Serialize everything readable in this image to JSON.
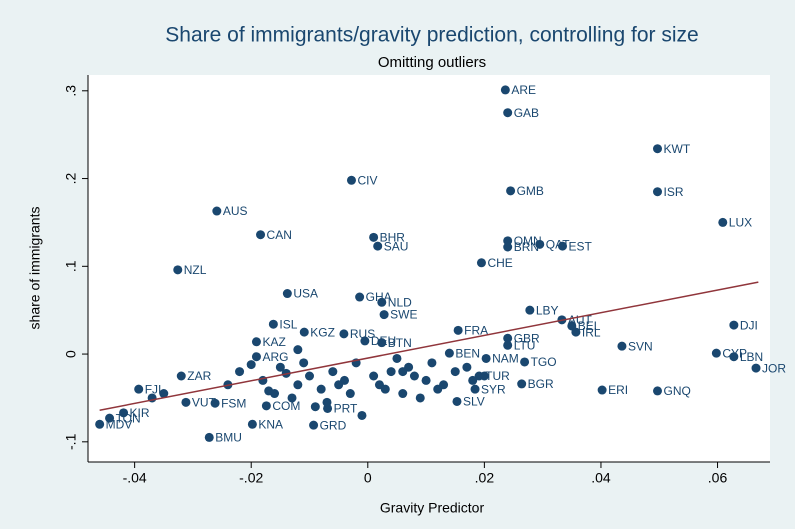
{
  "chart_data": {
    "type": "scatter",
    "title": "Share of immigrants/gravity prediction, controlling for size",
    "subtitle": "Omitting outliers",
    "x_label": "Gravity Predictor",
    "y_label": "share of immigrants",
    "color": "#1a476f",
    "xlim": [
      -0.048,
      0.069
    ],
    "ylim": [
      -0.123,
      0.318
    ],
    "xticks": [
      {
        "value": -0.04,
        "label": "-.04"
      },
      {
        "value": -0.02,
        "label": "-.02"
      },
      0,
      {
        "value": 0.02,
        "label": ".02"
      },
      {
        "value": 0.04,
        "label": ".04"
      },
      {
        "value": 0.06,
        "label": ".06"
      }
    ],
    "yticks": [
      {
        "value": -0.1,
        "label": "-.1"
      },
      0,
      {
        "value": 0.1,
        "label": ".1"
      },
      {
        "value": 0.2,
        "label": ".2"
      },
      {
        "value": 0.3,
        "label": ".3"
      }
    ],
    "fit": {
      "color": "#90353b",
      "x": [
        -0.046,
        0.067
      ],
      "y": [
        -0.064,
        0.082
      ]
    },
    "x": [
      0.0236,
      0.024,
      0.0497,
      0.0497,
      0.0609,
      -0.0028,
      0.0245,
      -0.0259,
      -0.0184,
      0.001,
      0.0017,
      0.024,
      0.024,
      0.0295,
      0.0334,
      0.0195,
      -0.0326,
      -0.0138,
      -0.0014,
      0.0024,
      0.0028,
      0.0278,
      0.0333,
      0.035,
      0.0357,
      -0.0162,
      0.0155,
      0.0436,
      0.0628,
      0.0598,
      0.0628,
      0.0666,
      0.024,
      0.024,
      0.014,
      0.0203,
      0.0269,
      -0.0191,
      0.0402,
      0.0497,
      0.0264,
      0.0184,
      0.0191,
      0.0153,
      -0.032,
      -0.0393,
      -0.0419,
      -0.046,
      -0.0443,
      -0.0262,
      -0.0312,
      -0.0272,
      -0.0198,
      -0.0069,
      -0.0174,
      0.0024,
      -0.0041,
      -0.0109,
      -0.0005,
      -0.0191,
      -0.0093,
      -0.022,
      -0.018,
      -0.015,
      -0.012,
      -0.01,
      -0.008,
      -0.006,
      -0.004,
      -0.002,
      0.002,
      0.004,
      0.006,
      0.008,
      0.01,
      0.012,
      0.015,
      0.018,
      -0.016,
      -0.013,
      -0.011,
      -0.007,
      -0.003,
      0.001,
      0.005,
      0.009,
      0.013,
      0.017,
      -0.02,
      -0.014,
      -0.009,
      -0.005,
      0.003,
      0.007,
      0.011,
      -0.024,
      -0.017,
      -0.012,
      -0.001,
      0.02,
      0.006,
      -0.035,
      -0.037
    ],
    "y": [
      0.301,
      0.275,
      0.234,
      0.185,
      0.15,
      0.198,
      0.186,
      0.163,
      0.136,
      0.133,
      0.123,
      0.129,
      0.122,
      0.125,
      0.123,
      0.104,
      0.096,
      0.069,
      0.065,
      0.059,
      0.045,
      0.05,
      0.039,
      0.032,
      0.025,
      0.034,
      0.027,
      0.009,
      0.033,
      0.001,
      -0.003,
      -0.016,
      0.018,
      0.01,
      0.001,
      -0.005,
      -0.009,
      0.014,
      -0.041,
      -0.042,
      -0.034,
      -0.04,
      -0.025,
      -0.054,
      -0.025,
      -0.04,
      -0.067,
      -0.08,
      -0.073,
      -0.056,
      -0.055,
      -0.095,
      -0.08,
      -0.062,
      -0.059,
      0.013,
      0.023,
      0.025,
      0.015,
      -0.003,
      -0.081,
      -0.02,
      -0.03,
      -0.015,
      -0.035,
      -0.025,
      -0.04,
      -0.02,
      -0.03,
      -0.01,
      -0.035,
      -0.02,
      -0.045,
      -0.025,
      -0.03,
      -0.04,
      -0.02,
      -0.03,
      -0.045,
      -0.05,
      -0.01,
      -0.055,
      -0.045,
      -0.025,
      -0.005,
      -0.05,
      -0.035,
      -0.015,
      -0.012,
      -0.022,
      -0.06,
      -0.035,
      -0.04,
      -0.015,
      -0.01,
      -0.035,
      -0.042,
      0.005,
      -0.07,
      -0.025,
      -0.02,
      -0.045,
      -0.05
    ],
    "point_labels": [
      "ARE",
      "GAB",
      "KWT",
      "ISR",
      "LUX",
      "CIV",
      "GMB",
      "AUS",
      "CAN",
      "BHR",
      "SAU",
      "OMN",
      "BRN",
      "QAT",
      "EST",
      "CHE",
      "NZL",
      "USA",
      "GHA",
      "NLD",
      "SWE",
      "LBY",
      "AUT",
      "BEL",
      "IRL",
      "ISL",
      "FRA",
      "SVN",
      "DJI",
      "CYP",
      "LBN",
      "JOR",
      "GBR",
      "LTU",
      "BEN",
      "NAM",
      "TGO",
      "KAZ",
      "ERI",
      "GNQ",
      "BGR",
      "SYR",
      "TUR",
      "SLV",
      "ZAR",
      "FJI",
      "KIR",
      "MDV",
      "TON",
      "FSM",
      "VUT",
      "BMU",
      "KNA",
      "PRT",
      "COM",
      "BTN",
      "RUS",
      "KGZ",
      "DEU",
      "ARG",
      "GRD",
      null,
      null,
      null,
      null,
      null,
      null,
      null,
      null,
      null,
      null,
      null,
      null,
      null,
      null,
      null,
      null,
      null,
      null,
      null,
      null,
      null,
      null,
      null,
      null,
      null,
      null,
      null,
      null,
      null,
      null,
      null,
      null,
      null,
      null,
      null,
      null,
      null,
      null,
      null,
      null,
      null,
      null
    ]
  }
}
